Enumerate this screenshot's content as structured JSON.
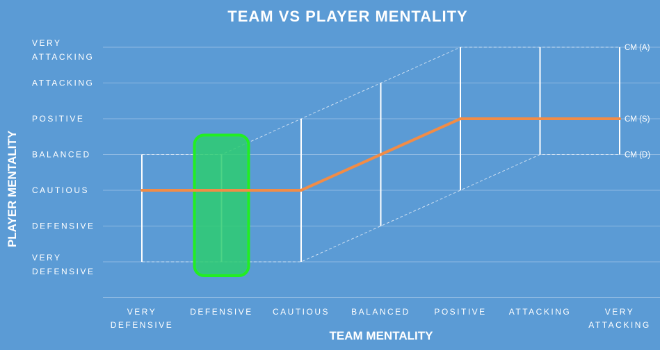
{
  "chart_data": {
    "type": "line",
    "title": "TEAM VS PLAYER MENTALITY",
    "xlabel": "TEAM MENTALITY",
    "ylabel": "PLAYER MENTALITY",
    "categories": [
      "VERY DEFENSIVE",
      "DEFENSIVE",
      "CAUTIOUS",
      "BALANCED",
      "POSITIVE",
      "ATTACKING",
      "VERY ATTACKING"
    ],
    "y_categories": [
      "VERY DEFENSIVE",
      "DEFENSIVE",
      "CAUTIOUS",
      "BALANCED",
      "POSITIVE",
      "ATTACKING",
      "VERY ATTACKING"
    ],
    "highlight_y_category": "VERY ATTACKING",
    "highlight_color": "#e8202a",
    "highlighted_x_category": "DEFENSIVE",
    "highlight_box_color": "#2ecc71",
    "highlight_box_border": "#22ee22",
    "ylim": [
      0,
      6
    ],
    "series": [
      {
        "name": "CM (S)",
        "role": "support",
        "color": "#f28c46",
        "values": [
          2,
          2,
          2,
          3,
          4,
          4,
          4
        ]
      },
      {
        "name": "CM (A)",
        "role": "attack",
        "values": [
          3,
          3,
          4,
          5,
          6,
          6,
          6
        ]
      },
      {
        "name": "CM (D)",
        "role": "defend",
        "values": [
          0,
          0,
          0,
          1,
          2,
          3,
          3
        ]
      }
    ],
    "grid": true,
    "colors": {
      "background": "#5b9bd5",
      "text": "#ffffff",
      "gridline": "#9cc2e6"
    }
  }
}
